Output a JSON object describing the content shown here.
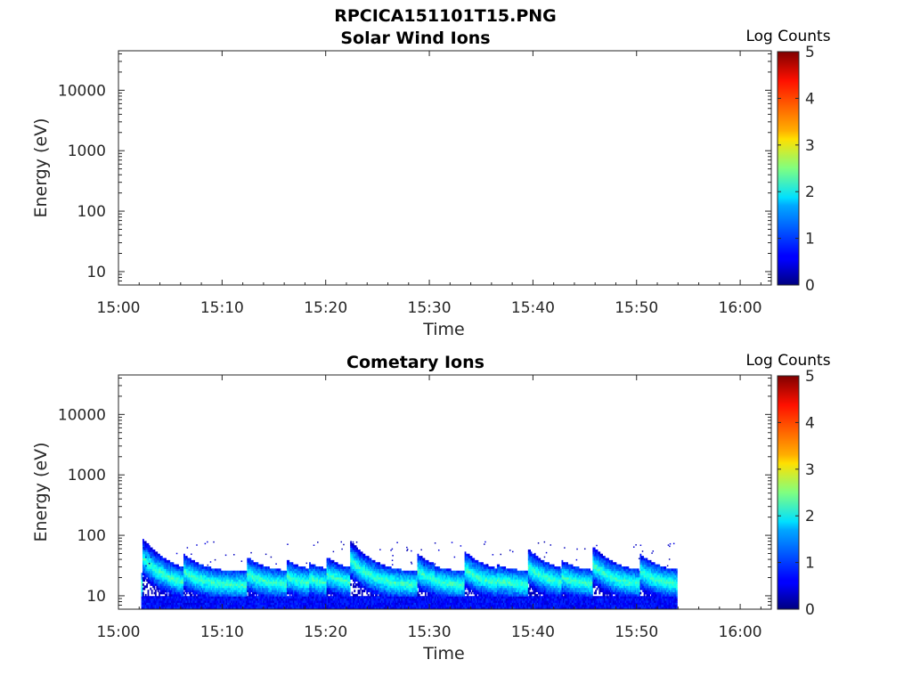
{
  "figure": {
    "title": "RPCICA151101T15.PNG"
  },
  "chart_data": [
    {
      "type": "heatmap",
      "title": "Solar Wind Ions",
      "xlabel": "Time",
      "ylabel": "Energy (eV)",
      "x_ticks": [
        "15:00",
        "15:10",
        "15:20",
        "15:30",
        "15:40",
        "15:50",
        "16:00"
      ],
      "xlim_minutes": [
        0,
        63
      ],
      "y_ticks": [
        "10",
        "100",
        "1000",
        "10000"
      ],
      "y_tick_values": [
        10,
        100,
        1000,
        10000
      ],
      "y_scale": "log",
      "ylim": [
        6,
        45000
      ],
      "colorbar": {
        "label": "Log Counts",
        "ticks": [
          "0",
          "1",
          "2",
          "3",
          "4",
          "5"
        ],
        "range": [
          0,
          5
        ],
        "colormap": "jet"
      },
      "bursts": []
    },
    {
      "type": "heatmap",
      "title": "Cometary Ions",
      "xlabel": "Time",
      "ylabel": "Energy (eV)",
      "x_ticks": [
        "15:00",
        "15:10",
        "15:20",
        "15:30",
        "15:40",
        "15:50",
        "16:00"
      ],
      "xlim_minutes": [
        0,
        63
      ],
      "y_ticks": [
        "10",
        "100",
        "1000",
        "10000"
      ],
      "y_tick_values": [
        10,
        100,
        1000,
        10000
      ],
      "y_scale": "log",
      "ylim": [
        6,
        45000
      ],
      "colorbar": {
        "label": "Log Counts",
        "ticks": [
          "0",
          "1",
          "2",
          "3",
          "4",
          "5"
        ],
        "range": [
          0,
          5
        ],
        "colormap": "jet"
      },
      "data_time_range_minutes": [
        2.2,
        53.8
      ],
      "band_energy_range_eV": [
        6,
        30
      ],
      "bursts": [
        {
          "t_minutes": 2.3,
          "peak_energy_eV": 80
        },
        {
          "t_minutes": 6.2,
          "peak_energy_eV": 45
        },
        {
          "t_minutes": 12.3,
          "peak_energy_eV": 40
        },
        {
          "t_minutes": 16.2,
          "peak_energy_eV": 35
        },
        {
          "t_minutes": 18.3,
          "peak_energy_eV": 32
        },
        {
          "t_minutes": 20.0,
          "peak_energy_eV": 40
        },
        {
          "t_minutes": 22.3,
          "peak_energy_eV": 75
        },
        {
          "t_minutes": 28.8,
          "peak_energy_eV": 45
        },
        {
          "t_minutes": 30.5,
          "peak_energy_eV": 28
        },
        {
          "t_minutes": 33.3,
          "peak_energy_eV": 50
        },
        {
          "t_minutes": 36.4,
          "peak_energy_eV": 30
        },
        {
          "t_minutes": 39.4,
          "peak_energy_eV": 55
        },
        {
          "t_minutes": 42.7,
          "peak_energy_eV": 35
        },
        {
          "t_minutes": 45.7,
          "peak_energy_eV": 60
        },
        {
          "t_minutes": 50.2,
          "peak_energy_eV": 45
        }
      ]
    }
  ]
}
